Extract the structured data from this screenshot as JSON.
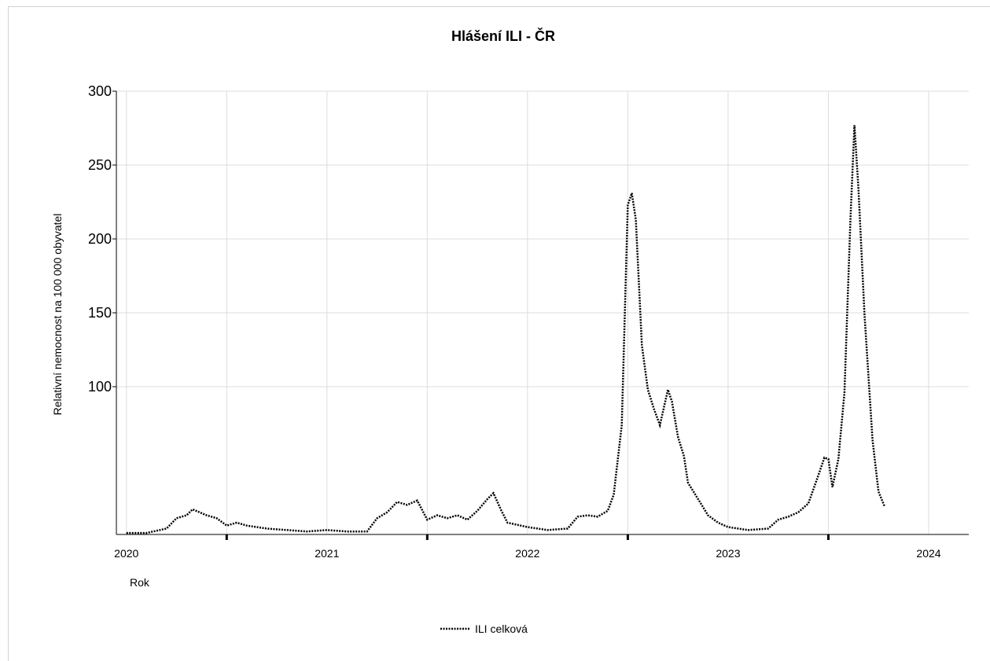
{
  "chart_data": {
    "type": "line",
    "title": "Hlášení ILI - ČR",
    "x_label": "Rok",
    "y_label": "Relativní nemocnost na 100 000 obyvatel",
    "xlim": [
      2019.95,
      2024.2
    ],
    "xticks": [
      2020,
      2021,
      2022,
      2023,
      2024
    ],
    "xminor_ticks": [
      2020.5,
      2021.5,
      2022.5,
      2023.5
    ],
    "ylim": [
      0,
      300
    ],
    "yticks": [
      100,
      150,
      200,
      250,
      300
    ],
    "grid": true,
    "x": [
      2020.0,
      2020.1,
      2020.2,
      2020.25,
      2020.3,
      2020.33,
      2020.4,
      2020.45,
      2020.5,
      2020.55,
      2020.6,
      2020.7,
      2020.8,
      2020.9,
      2021.0,
      2021.1,
      2021.2,
      2021.25,
      2021.3,
      2021.35,
      2021.4,
      2021.45,
      2021.5,
      2021.55,
      2021.6,
      2021.65,
      2021.7,
      2021.75,
      2021.8,
      2021.83,
      2021.87,
      2021.9,
      2022.0,
      2022.1,
      2022.2,
      2022.25,
      2022.3,
      2022.35,
      2022.4,
      2022.43,
      2022.47,
      2022.5,
      2022.52,
      2022.54,
      2022.57,
      2022.6,
      2022.63,
      2022.66,
      2022.7,
      2022.72,
      2022.75,
      2022.78,
      2022.8,
      2022.85,
      2022.9,
      2022.95,
      2023.0,
      2023.1,
      2023.2,
      2023.25,
      2023.3,
      2023.35,
      2023.4,
      2023.45,
      2023.48,
      2023.5,
      2023.52,
      2023.55,
      2023.58,
      2023.61,
      2023.63,
      2023.65,
      2023.68,
      2023.72,
      2023.75,
      2023.78
    ],
    "series": [
      {
        "name": "ILI celková",
        "color": "#000000",
        "values": [
          1,
          1,
          4,
          11,
          13,
          17,
          13,
          11,
          6,
          8,
          6,
          4,
          3,
          2,
          3,
          2,
          2,
          11,
          15,
          22,
          20,
          23,
          10,
          13,
          11,
          13,
          10,
          16,
          24,
          28,
          16,
          8,
          5,
          3,
          4,
          12,
          13,
          12,
          16,
          27,
          74,
          223,
          231,
          213,
          128,
          98,
          85,
          74,
          98,
          90,
          66,
          53,
          35,
          24,
          13,
          8,
          5,
          3,
          4,
          10,
          12,
          15,
          21,
          40,
          52,
          51,
          32,
          51,
          96,
          213,
          277,
          234,
          149,
          64,
          29,
          19
        ]
      }
    ]
  }
}
